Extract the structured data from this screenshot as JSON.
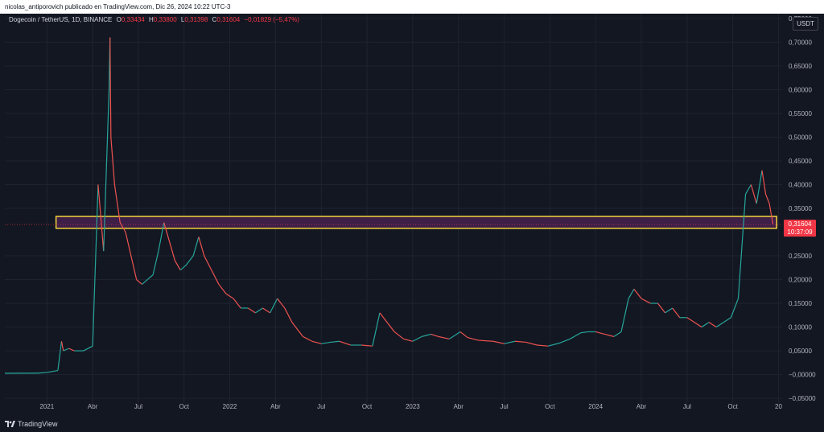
{
  "header": {
    "publisher_line": "nicolas_antiporovich publicado en TradingView.com, Dic 26, 2024 10:22 UTC-3"
  },
  "legend": {
    "symbol": "Dogecoin / TetherUS, 1D, BINANCE",
    "o_label": "O",
    "o_value": "0,33434",
    "h_label": "H",
    "h_value": "0,33800",
    "l_label": "L",
    "l_value": "0,31398",
    "c_label": "C",
    "c_value": "0,31604",
    "change": "−0,01829 (−5,47%)"
  },
  "currency_button": "USDT",
  "price_label": {
    "price": "0,31604",
    "countdown": "10:37:09"
  },
  "branding": {
    "name": "TradingView"
  },
  "colors": {
    "up": "#26a69a",
    "down": "#ef5350",
    "zone_fill": "#3d1f48",
    "zone_stroke": "#f3d43c",
    "price_tag": "#f23645"
  },
  "chart_data": {
    "type": "line",
    "title": "Dogecoin / TetherUS, 1D, BINANCE",
    "ylim": [
      -0.06,
      0.76
    ],
    "y_ticks": [
      {
        "value": 0.75,
        "label": "0,75000"
      },
      {
        "value": 0.7,
        "label": "0,70000"
      },
      {
        "value": 0.65,
        "label": "0,65000"
      },
      {
        "value": 0.6,
        "label": "0,60000"
      },
      {
        "value": 0.55,
        "label": "0,55000"
      },
      {
        "value": 0.5,
        "label": "0,50000"
      },
      {
        "value": 0.45,
        "label": "0,45000"
      },
      {
        "value": 0.4,
        "label": "0,40000"
      },
      {
        "value": 0.35,
        "label": "0,35000"
      },
      {
        "value": 0.25,
        "label": "0,25000"
      },
      {
        "value": 0.2,
        "label": "0,20000"
      },
      {
        "value": 0.15,
        "label": "0,15000"
      },
      {
        "value": 0.1,
        "label": "0,10000"
      },
      {
        "value": 0.05,
        "label": "0,05000"
      },
      {
        "value": 0.0,
        "label": "−0,00000"
      },
      {
        "value": -0.05,
        "label": "−0,05000"
      }
    ],
    "x_ticks": [
      {
        "t": 2021.0,
        "label": "2021"
      },
      {
        "t": 2021.25,
        "label": "Abr"
      },
      {
        "t": 2021.5,
        "label": "Jul"
      },
      {
        "t": 2021.75,
        "label": "Oct"
      },
      {
        "t": 2022.0,
        "label": "2022"
      },
      {
        "t": 2022.25,
        "label": "Abr"
      },
      {
        "t": 2022.5,
        "label": "Jul"
      },
      {
        "t": 2022.75,
        "label": "Oct"
      },
      {
        "t": 2023.0,
        "label": "2023"
      },
      {
        "t": 2023.25,
        "label": "Abr"
      },
      {
        "t": 2023.5,
        "label": "Jul"
      },
      {
        "t": 2023.75,
        "label": "Oct"
      },
      {
        "t": 2024.0,
        "label": "2024"
      },
      {
        "t": 2024.25,
        "label": "Abr"
      },
      {
        "t": 2024.5,
        "label": "Jul"
      },
      {
        "t": 2024.75,
        "label": "Oct"
      },
      {
        "t": 2025.0,
        "label": "20"
      }
    ],
    "x_range": [
      2020.77,
      2025.02
    ],
    "series": [
      {
        "points": [
          [
            2020.77,
            0.0027
          ],
          [
            2020.95,
            0.0029
          ],
          [
            2021.0,
            0.0045
          ],
          [
            2021.06,
            0.0085
          ],
          [
            2021.08,
            0.07
          ],
          [
            2021.09,
            0.05
          ],
          [
            2021.12,
            0.055
          ],
          [
            2021.15,
            0.05
          ],
          [
            2021.2,
            0.05
          ],
          [
            2021.25,
            0.06
          ],
          [
            2021.28,
            0.4
          ],
          [
            2021.31,
            0.26
          ],
          [
            2021.34,
            0.6
          ],
          [
            2021.345,
            0.71
          ],
          [
            2021.35,
            0.5
          ],
          [
            2021.37,
            0.4
          ],
          [
            2021.4,
            0.32
          ],
          [
            2021.43,
            0.3
          ],
          [
            2021.46,
            0.25
          ],
          [
            2021.49,
            0.2
          ],
          [
            2021.52,
            0.19
          ],
          [
            2021.55,
            0.2
          ],
          [
            2021.58,
            0.21
          ],
          [
            2021.61,
            0.26
          ],
          [
            2021.64,
            0.32
          ],
          [
            2021.67,
            0.28
          ],
          [
            2021.7,
            0.24
          ],
          [
            2021.73,
            0.22
          ],
          [
            2021.76,
            0.23
          ],
          [
            2021.8,
            0.25
          ],
          [
            2021.83,
            0.29
          ],
          [
            2021.86,
            0.25
          ],
          [
            2021.9,
            0.22
          ],
          [
            2021.94,
            0.19
          ],
          [
            2021.98,
            0.17
          ],
          [
            2022.02,
            0.16
          ],
          [
            2022.06,
            0.14
          ],
          [
            2022.1,
            0.14
          ],
          [
            2022.14,
            0.13
          ],
          [
            2022.18,
            0.14
          ],
          [
            2022.22,
            0.13
          ],
          [
            2022.26,
            0.16
          ],
          [
            2022.3,
            0.14
          ],
          [
            2022.34,
            0.11
          ],
          [
            2022.4,
            0.08
          ],
          [
            2022.45,
            0.07
          ],
          [
            2022.5,
            0.065
          ],
          [
            2022.55,
            0.068
          ],
          [
            2022.6,
            0.07
          ],
          [
            2022.66,
            0.062
          ],
          [
            2022.72,
            0.062
          ],
          [
            2022.78,
            0.06
          ],
          [
            2022.82,
            0.13
          ],
          [
            2022.86,
            0.11
          ],
          [
            2022.9,
            0.09
          ],
          [
            2022.95,
            0.075
          ],
          [
            2023.0,
            0.07
          ],
          [
            2023.05,
            0.08
          ],
          [
            2023.1,
            0.085
          ],
          [
            2023.14,
            0.08
          ],
          [
            2023.2,
            0.075
          ],
          [
            2023.26,
            0.09
          ],
          [
            2023.3,
            0.078
          ],
          [
            2023.36,
            0.072
          ],
          [
            2023.44,
            0.07
          ],
          [
            2023.5,
            0.065
          ],
          [
            2023.56,
            0.07
          ],
          [
            2023.62,
            0.068
          ],
          [
            2023.68,
            0.062
          ],
          [
            2023.74,
            0.06
          ],
          [
            2023.8,
            0.066
          ],
          [
            2023.86,
            0.075
          ],
          [
            2023.92,
            0.088
          ],
          [
            2023.96,
            0.09
          ],
          [
            2024.0,
            0.09
          ],
          [
            2024.05,
            0.085
          ],
          [
            2024.1,
            0.08
          ],
          [
            2024.14,
            0.09
          ],
          [
            2024.18,
            0.16
          ],
          [
            2024.21,
            0.18
          ],
          [
            2024.25,
            0.16
          ],
          [
            2024.3,
            0.15
          ],
          [
            2024.34,
            0.15
          ],
          [
            2024.38,
            0.13
          ],
          [
            2024.42,
            0.14
          ],
          [
            2024.46,
            0.12
          ],
          [
            2024.5,
            0.12
          ],
          [
            2024.54,
            0.11
          ],
          [
            2024.58,
            0.1
          ],
          [
            2024.62,
            0.11
          ],
          [
            2024.66,
            0.1
          ],
          [
            2024.7,
            0.11
          ],
          [
            2024.74,
            0.12
          ],
          [
            2024.78,
            0.16
          ],
          [
            2024.82,
            0.38
          ],
          [
            2024.85,
            0.4
          ],
          [
            2024.88,
            0.36
          ],
          [
            2024.91,
            0.43
          ],
          [
            2024.93,
            0.38
          ],
          [
            2024.95,
            0.36
          ],
          [
            2024.97,
            0.316
          ]
        ]
      }
    ],
    "zone": {
      "from": 2021.05,
      "to": 2024.99,
      "low": 0.308,
      "high": 0.333
    }
  }
}
